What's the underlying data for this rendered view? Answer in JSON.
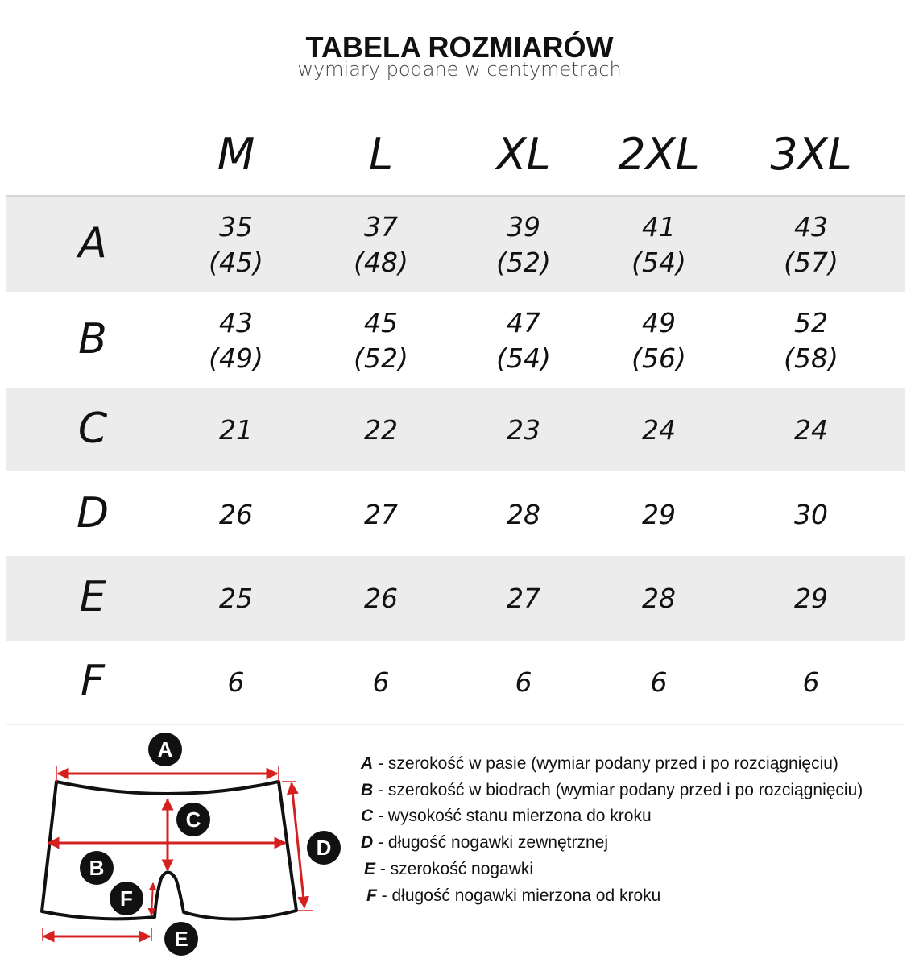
{
  "header": {
    "title": "TABELA ROZMIARÓW",
    "subtitle": "wymiary podane w centymetrach"
  },
  "table": {
    "sizes": [
      "M",
      "L",
      "XL",
      "2XL",
      "3XL"
    ],
    "rows": [
      {
        "label": "A",
        "values": [
          [
            "35",
            "(45)"
          ],
          [
            "37",
            "(48)"
          ],
          [
            "39",
            "(52)"
          ],
          [
            "41",
            "(54)"
          ],
          [
            "43",
            "(57)"
          ]
        ]
      },
      {
        "label": "B",
        "values": [
          [
            "43",
            "(49)"
          ],
          [
            "45",
            "(52)"
          ],
          [
            "47",
            "(54)"
          ],
          [
            "49",
            "(56)"
          ],
          [
            "52",
            "(58)"
          ]
        ]
      },
      {
        "label": "C",
        "values": [
          [
            "21"
          ],
          [
            "22"
          ],
          [
            "23"
          ],
          [
            "24"
          ],
          [
            "24"
          ]
        ]
      },
      {
        "label": "D",
        "values": [
          [
            "26"
          ],
          [
            "27"
          ],
          [
            "28"
          ],
          [
            "29"
          ],
          [
            "30"
          ]
        ]
      },
      {
        "label": "E",
        "values": [
          [
            "25"
          ],
          [
            "26"
          ],
          [
            "27"
          ],
          [
            "28"
          ],
          [
            "29"
          ]
        ]
      },
      {
        "label": "F",
        "values": [
          [
            "6"
          ],
          [
            "6"
          ],
          [
            "6"
          ],
          [
            "6"
          ],
          [
            "6"
          ]
        ]
      }
    ],
    "colors": {
      "stripe": "#ececec",
      "measure_arrow": "#d62020"
    }
  },
  "diagram": {
    "markers": [
      "A",
      "B",
      "C",
      "D",
      "E",
      "F"
    ]
  },
  "legend": [
    {
      "key": "A",
      "text": " - szerokość w pasie (wymiar podany przed i po rozciągnięciu)"
    },
    {
      "key": "B",
      "text": " - szerokość w biodrach (wymiar podany przed i po rozciągnięciu)"
    },
    {
      "key": "C",
      "text": " - wysokość stanu mierzona do kroku"
    },
    {
      "key": "D",
      "text": " - długość nogawki zewnętrznej"
    },
    {
      "key": "E",
      "text": " - szerokość nogawki"
    },
    {
      "key": "F",
      "text": " - długość nogawki mierzona od kroku"
    }
  ]
}
